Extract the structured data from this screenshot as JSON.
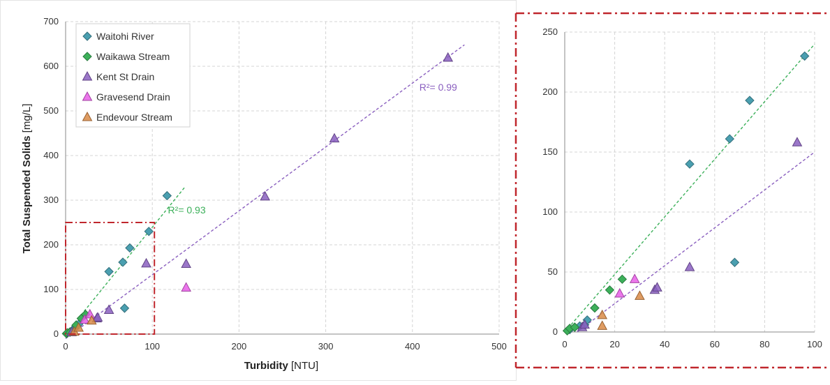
{
  "chart_data": [
    {
      "type": "scatter",
      "xlabel": {
        "bold": "Turbidity",
        "unit": " [NTU]"
      },
      "ylabel": {
        "bold": "Total Suspended Solids",
        "unit": " [mg/L]"
      },
      "xlim": [
        0,
        500
      ],
      "ylim": [
        0,
        700
      ],
      "xticks": [
        "0",
        "100",
        "200",
        "300",
        "400",
        "500"
      ],
      "yticks": [
        "0",
        "100",
        "200",
        "300",
        "400",
        "500",
        "600",
        "700"
      ],
      "grid": true,
      "legend_position": "top-left",
      "series": [
        {
          "name": "Waitohi River",
          "marker": "diamond",
          "color": "#4a9fb0",
          "points": [
            [
              2,
              2
            ],
            [
              5,
              5
            ],
            [
              8,
              9
            ],
            [
              12,
              17
            ],
            [
              15,
              22
            ],
            [
              50,
              140
            ],
            [
              66,
              161
            ],
            [
              74,
              193
            ],
            [
              96,
              230
            ],
            [
              68,
              58
            ],
            [
              117,
              310
            ]
          ]
        },
        {
          "name": "Waikawa Stream",
          "marker": "diamond",
          "color": "#3cb05a",
          "points": [
            [
              1,
              1
            ],
            [
              2,
              3
            ],
            [
              5,
              4
            ],
            [
              12,
              20
            ],
            [
              18,
              35
            ],
            [
              23,
              44
            ]
          ]
        },
        {
          "name": "Kent St Drain",
          "marker": "triangle",
          "color": "#8a5fbf",
          "points": [
            [
              7,
              4
            ],
            [
              36,
              35
            ],
            [
              37,
              37
            ],
            [
              50,
              54
            ],
            [
              93,
              158
            ],
            [
              139,
              157
            ],
            [
              230,
              308
            ],
            [
              310,
              438
            ],
            [
              441,
              619
            ]
          ]
        },
        {
          "name": "Gravesend Drain",
          "marker": "triangle",
          "color": "#e85ee8",
          "points": [
            [
              22,
              32
            ],
            [
              28,
              44
            ],
            [
              139,
              104
            ]
          ]
        },
        {
          "name": "Endevour Stream",
          "marker": "triangle",
          "color": "#d98b46",
          "points": [
            [
              10,
              5
            ],
            [
              15,
              14
            ],
            [
              30,
              30
            ]
          ]
        }
      ],
      "trendlines": [
        {
          "color": "#3cb05a",
          "from": [
            0,
            0
          ],
          "to": [
            137,
            328
          ],
          "label": "R²= 0.93"
        },
        {
          "color": "#8a5fbf",
          "from": [
            0,
            -10
          ],
          "to": [
            460,
            648
          ],
          "label": "R²= 0.99"
        }
      ]
    },
    {
      "type": "scatter",
      "xlim": [
        0,
        100
      ],
      "ylim": [
        0,
        250
      ],
      "xticks": [
        "0",
        "20",
        "40",
        "60",
        "80",
        "100"
      ],
      "yticks": [
        "0",
        "50",
        "100",
        "150",
        "200",
        "250"
      ],
      "grid": true,
      "series": [
        {
          "name": "Waitohi River",
          "marker": "diamond",
          "color": "#4a9fb0",
          "points": [
            [
              2,
              2
            ],
            [
              4,
              4
            ],
            [
              6,
              5
            ],
            [
              8,
              6
            ],
            [
              9,
              10
            ],
            [
              12,
              20
            ],
            [
              50,
              140
            ],
            [
              66,
              161
            ],
            [
              74,
              193
            ],
            [
              96,
              230
            ],
            [
              68,
              58
            ]
          ]
        },
        {
          "name": "Waikawa Stream",
          "marker": "diamond",
          "color": "#3cb05a",
          "points": [
            [
              1,
              1
            ],
            [
              2,
              3
            ],
            [
              4,
              4
            ],
            [
              12,
              20
            ],
            [
              18,
              35
            ],
            [
              23,
              44
            ]
          ]
        },
        {
          "name": "Kent St Drain",
          "marker": "triangle",
          "color": "#8a5fbf",
          "points": [
            [
              7,
              4
            ],
            [
              8,
              6
            ],
            [
              36,
              35
            ],
            [
              37,
              37
            ],
            [
              50,
              54
            ],
            [
              93,
              158
            ]
          ]
        },
        {
          "name": "Gravesend Drain",
          "marker": "triangle",
          "color": "#e85ee8",
          "points": [
            [
              22,
              32
            ],
            [
              28,
              44
            ]
          ]
        },
        {
          "name": "Endevour Stream",
          "marker": "triangle",
          "color": "#d98b46",
          "points": [
            [
              15,
              14
            ],
            [
              15,
              5
            ],
            [
              30,
              30
            ]
          ]
        }
      ],
      "trendlines": [
        {
          "color": "#3cb05a",
          "from": [
            0,
            0
          ],
          "to": [
            100,
            240
          ]
        },
        {
          "color": "#8a5fbf",
          "from": [
            5,
            0
          ],
          "to": [
            100,
            150
          ]
        }
      ]
    }
  ],
  "zoom_box": {
    "x": [
      0,
      100
    ],
    "y": [
      0,
      250
    ],
    "color": "#c0272d"
  }
}
